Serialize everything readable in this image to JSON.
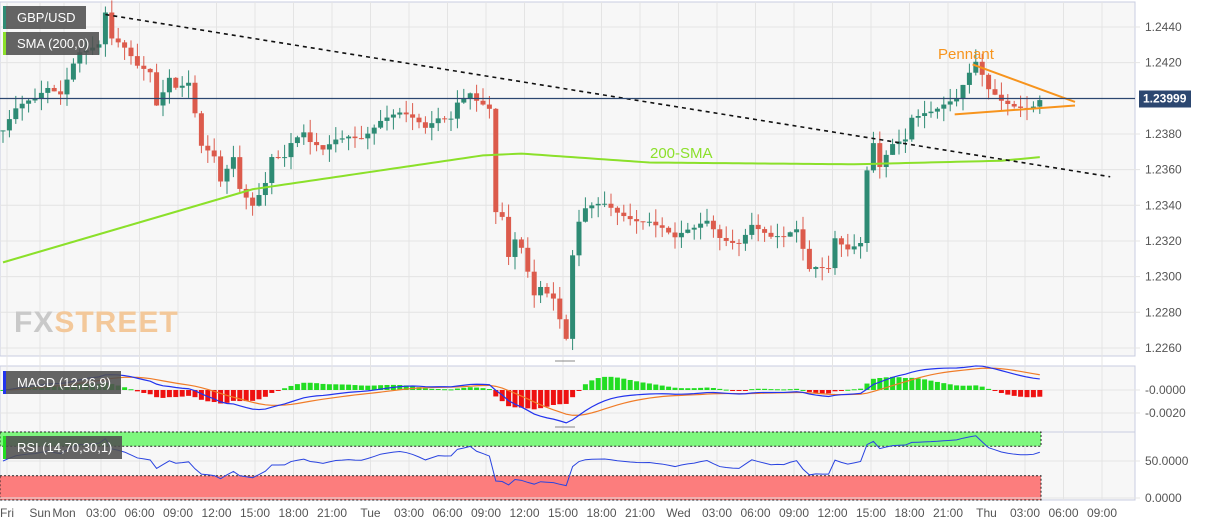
{
  "chart_data": {
    "type": "candlestick",
    "symbol": "GBP/USD",
    "indicator_labels": {
      "sma": "SMA (200,0)",
      "macd": "MACD (12,26,9)",
      "rsi": "RSI (14,70,30,1)"
    },
    "last_price": "1.23999",
    "last_price_value": 1.23999,
    "ylim": [
      1.2252,
      1.2452
    ],
    "y_ticks": [
      "1.2440",
      "1.2420",
      "1.2380",
      "1.2360",
      "1.2340",
      "1.2320",
      "1.2300",
      "1.2280",
      "1.2260"
    ],
    "macd_ticks": [
      "-0.0000",
      "-0.0020"
    ],
    "rsi_ticks": [
      "50.0000",
      "0.0000"
    ],
    "x_labels": [
      "Fri",
      "Sun",
      "Mon",
      "03:00",
      "06:00",
      "09:00",
      "12:00",
      "15:00",
      "18:00",
      "21:00",
      "Tue",
      "03:00",
      "06:00",
      "09:00",
      "12:00",
      "15:00",
      "18:00",
      "21:00",
      "Wed",
      "03:00",
      "06:00",
      "09:00",
      "12:00",
      "15:00",
      "18:00",
      "21:00",
      "Thu",
      "03:00",
      "06:00",
      "09:00"
    ],
    "close_path": [
      [
        0,
        1.2382
      ],
      [
        2,
        1.2391
      ],
      [
        5,
        1.2396
      ],
      [
        7,
        1.2405
      ],
      [
        9,
        1.2405
      ],
      [
        11,
        1.2424
      ],
      [
        12,
        1.243
      ],
      [
        15,
        1.243
      ],
      [
        16,
        1.2446
      ],
      [
        17,
        1.243
      ],
      [
        19,
        1.2424
      ],
      [
        21,
        1.2416
      ],
      [
        23,
        1.2416
      ],
      [
        24,
        1.2399
      ],
      [
        26,
        1.2416
      ],
      [
        27,
        1.241
      ],
      [
        29,
        1.241
      ],
      [
        30,
        1.2391
      ],
      [
        31,
        1.2371
      ],
      [
        33,
        1.2363
      ],
      [
        34,
        1.2349
      ],
      [
        36,
        1.2365
      ],
      [
        37,
        1.2349
      ],
      [
        39,
        1.2343
      ],
      [
        41,
        1.2357
      ],
      [
        42,
        1.2371
      ],
      [
        44,
        1.2368
      ],
      [
        45,
        1.2374
      ],
      [
        47,
        1.2377
      ],
      [
        48,
        1.2371
      ],
      [
        50,
        1.2368
      ],
      [
        52,
        1.2377
      ],
      [
        54,
        1.2382
      ],
      [
        56,
        1.2382
      ],
      [
        59,
        1.2388
      ],
      [
        62,
        1.2388
      ],
      [
        66,
        1.2382
      ],
      [
        68,
        1.2391
      ],
      [
        70,
        1.2393
      ],
      [
        71,
        1.2402
      ],
      [
        73,
        1.2405
      ],
      [
        74,
        1.2399
      ],
      [
        76,
        1.2391
      ],
      [
        77,
        1.2332
      ],
      [
        78,
        1.2329
      ],
      [
        79,
        1.2307
      ],
      [
        80,
        1.2318
      ],
      [
        81,
        1.2315
      ],
      [
        83,
        1.2292
      ],
      [
        84,
        1.2298
      ],
      [
        86,
        1.2292
      ],
      [
        88,
        1.2267
      ],
      [
        89,
        1.2312
      ],
      [
        90,
        1.2329
      ],
      [
        91,
        1.2335
      ],
      [
        94,
        1.2337
      ],
      [
        96,
        1.2335
      ],
      [
        98,
        1.2335
      ],
      [
        101,
        1.2335
      ],
      [
        103,
        1.2329
      ],
      [
        105,
        1.232
      ],
      [
        108,
        1.2323
      ],
      [
        110,
        1.2329
      ],
      [
        112,
        1.2323
      ],
      [
        115,
        1.2323
      ],
      [
        117,
        1.2332
      ],
      [
        120,
        1.232
      ],
      [
        122,
        1.2318
      ],
      [
        124,
        1.2323
      ],
      [
        126,
        1.2304
      ],
      [
        127,
        1.2307
      ],
      [
        129,
        1.2309
      ],
      [
        130,
        1.2326
      ],
      [
        132,
        1.2318
      ],
      [
        134,
        1.2318
      ],
      [
        135,
        1.2357
      ],
      [
        136,
        1.2371
      ],
      [
        137,
        1.2357
      ],
      [
        139,
        1.2371
      ],
      [
        141,
        1.2377
      ],
      [
        142,
        1.2391
      ],
      [
        144,
        1.2396
      ],
      [
        147,
        1.2399
      ],
      [
        149,
        1.2399
      ],
      [
        152,
        1.2416
      ],
      [
        154,
        1.2402
      ],
      [
        156,
        1.2399
      ],
      [
        159,
        1.2399
      ],
      [
        162,
        1.2399
      ]
    ],
    "sma200": [
      [
        0,
        1.2308
      ],
      [
        39,
        1.2349
      ],
      [
        75,
        1.2368
      ],
      [
        81,
        1.2369
      ],
      [
        101,
        1.2364
      ],
      [
        133,
        1.2363
      ],
      [
        156,
        1.2365
      ],
      [
        162,
        1.2367
      ]
    ],
    "trendline": [
      [
        16,
        1.2447
      ],
      [
        173,
        1.2356
      ]
    ],
    "pennant_upper": [
      [
        151.5,
        1.2419
      ],
      [
        167.5,
        1.2398
      ]
    ],
    "pennant_lower": [
      [
        148.7,
        1.2391
      ],
      [
        167.5,
        1.2396
      ]
    ],
    "annotations": {
      "pennant": "Pennant",
      "sma": "200-SMA"
    },
    "colors": {
      "up": "#2e8b74",
      "down": "#dc5b4c",
      "sma": "#8be02a",
      "pennant": "#f7941d",
      "price_line": "#2c4770",
      "macd": "#2233ee",
      "signal": "#f07c28",
      "rsi": "#2a44e0"
    }
  },
  "logo": {
    "a": "FX",
    "b": "STREET"
  }
}
